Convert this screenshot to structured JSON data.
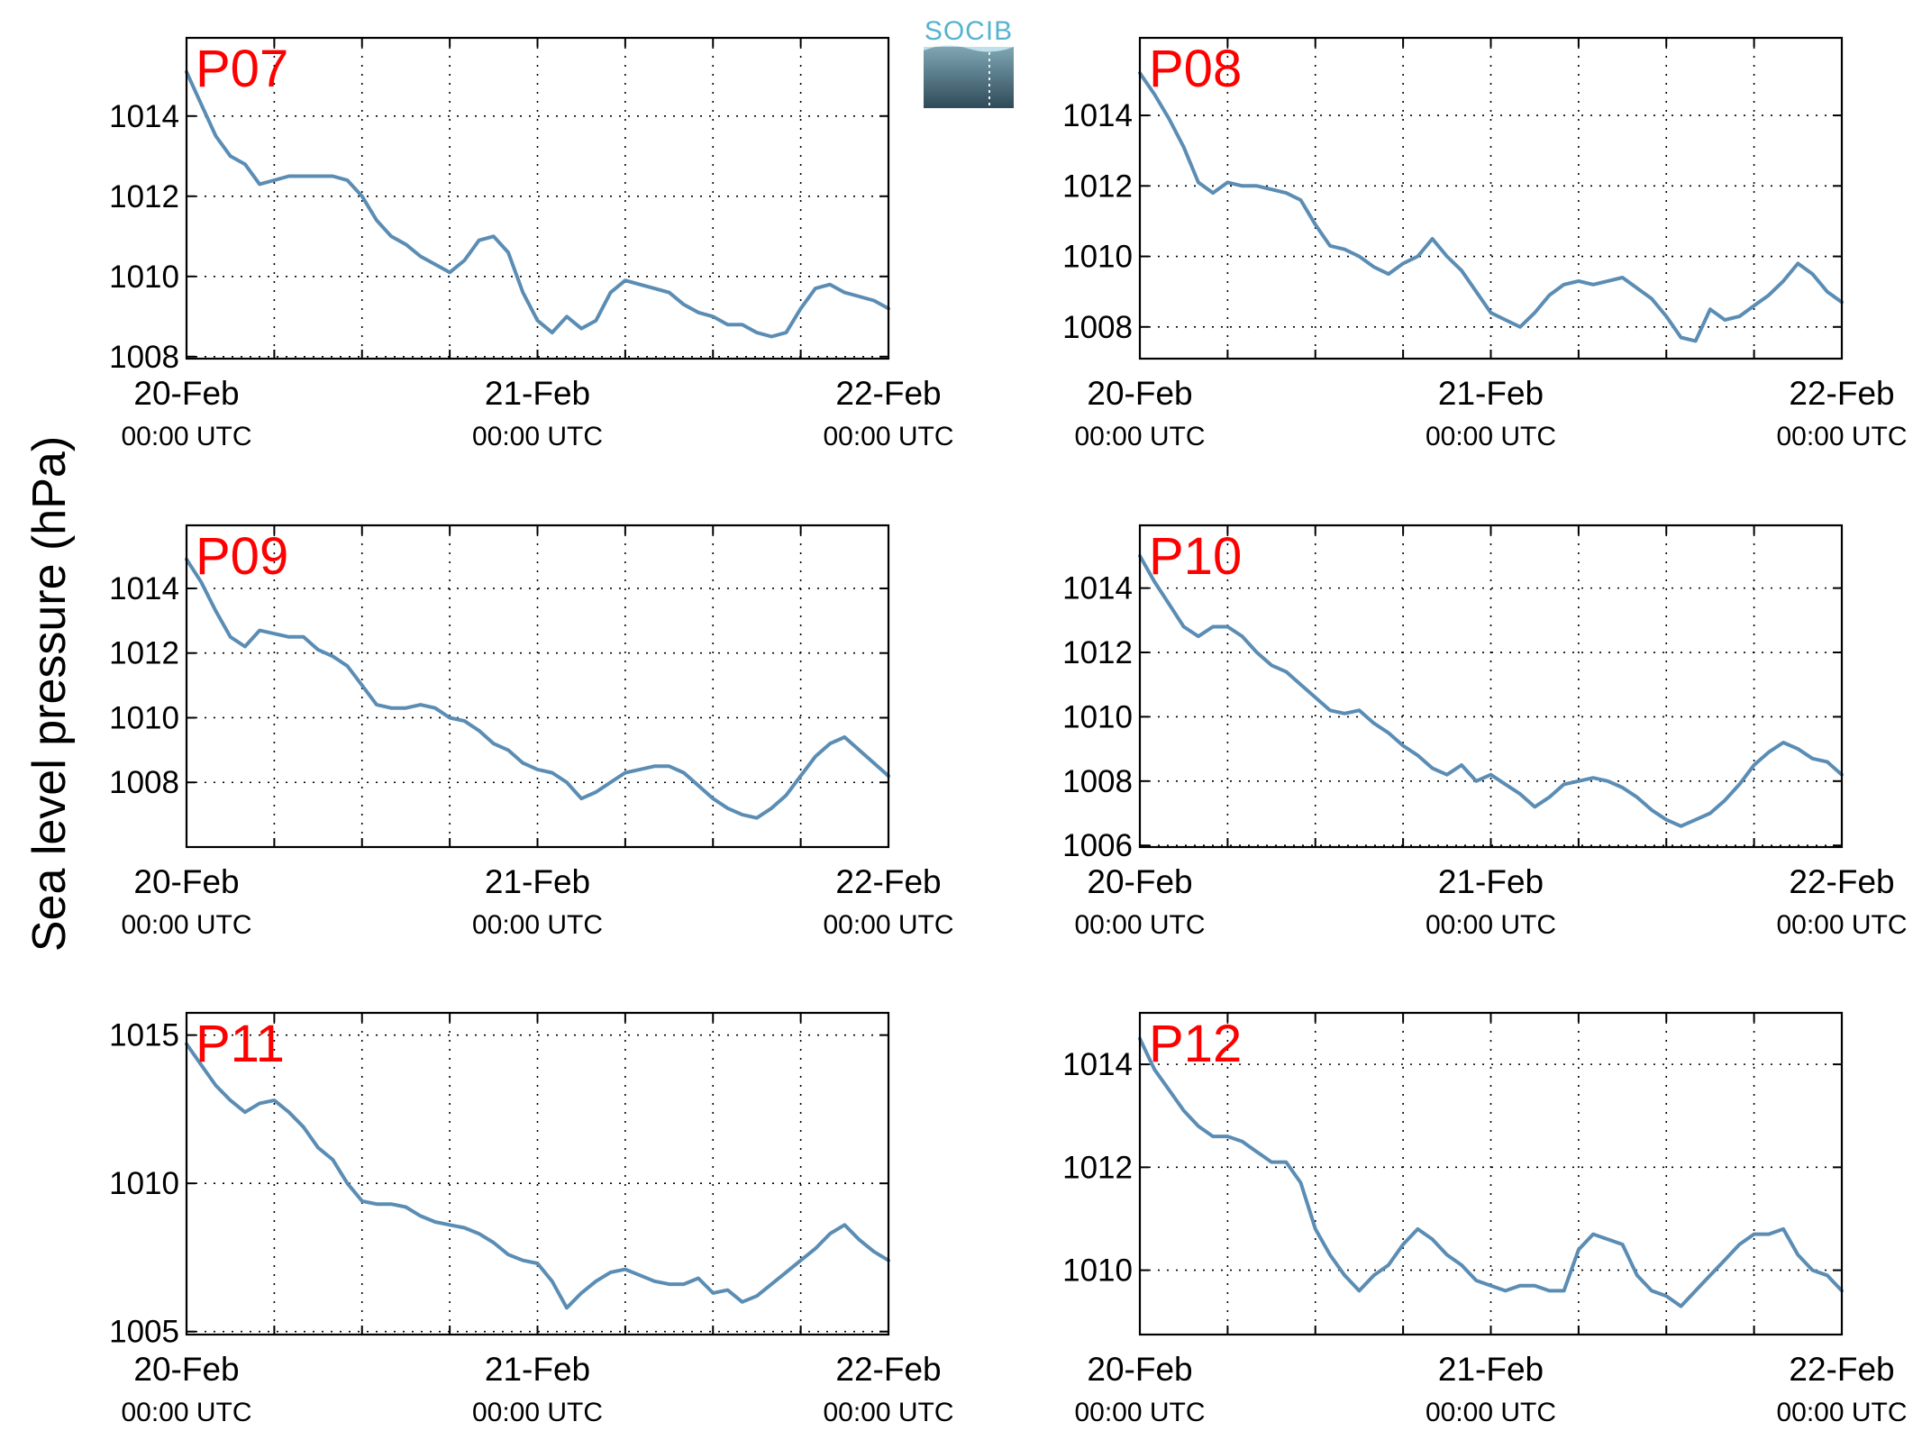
{
  "figure": {
    "ylabel": "Sea level pressure (hPa)",
    "logo_text": "SOCIB",
    "line_color": "#5b8db4",
    "panel_label_color": "#ff0000"
  },
  "chart_data": [
    {
      "type": "line",
      "panel_label": "P07",
      "x_ticks": [
        {
          "date": "20-Feb",
          "time": "00:00 UTC"
        },
        {
          "date": "21-Feb",
          "time": "00:00 UTC"
        },
        {
          "date": "22-Feb",
          "time": "00:00 UTC"
        }
      ],
      "x_range": [
        "2020-02-20 00:00",
        "2020-02-22 00:00"
      ],
      "x_grid_hours": 6,
      "y_ticks": [
        1008,
        1010,
        1012,
        1014
      ],
      "ylim": [
        1007.95,
        1015.95
      ],
      "grid": true,
      "series": [
        {
          "x_hours": [
            0,
            1,
            2,
            3,
            4,
            5,
            6,
            7,
            8,
            9,
            10,
            11,
            12,
            13,
            14,
            15,
            16,
            17,
            18,
            19,
            20,
            21,
            22,
            23,
            24,
            25,
            26,
            27,
            28,
            29,
            30,
            31,
            32,
            33,
            34,
            35,
            36,
            37,
            38,
            39,
            40,
            41,
            42,
            43,
            44,
            45,
            46,
            47,
            48
          ],
          "values": [
            1015.1,
            1014.3,
            1013.5,
            1013.0,
            1012.8,
            1012.3,
            1012.4,
            1012.5,
            1012.5,
            1012.5,
            1012.5,
            1012.4,
            1012.0,
            1011.4,
            1011.0,
            1010.8,
            1010.5,
            1010.3,
            1010.1,
            1010.4,
            1010.9,
            1011.0,
            1010.6,
            1009.6,
            1008.9,
            1008.6,
            1009.0,
            1008.7,
            1008.9,
            1009.6,
            1009.9,
            1009.8,
            1009.7,
            1009.6,
            1009.3,
            1009.1,
            1009.0,
            1008.8,
            1008.8,
            1008.6,
            1008.5,
            1008.6,
            1009.2,
            1009.7,
            1009.8,
            1009.6,
            1009.5,
            1009.4,
            1009.2
          ]
        }
      ]
    },
    {
      "type": "line",
      "panel_label": "P08",
      "x_ticks": [
        {
          "date": "20-Feb",
          "time": "00:00 UTC"
        },
        {
          "date": "21-Feb",
          "time": "00:00 UTC"
        },
        {
          "date": "22-Feb",
          "time": "00:00 UTC"
        }
      ],
      "x_range": [
        "2020-02-20 00:00",
        "2020-02-22 00:00"
      ],
      "x_grid_hours": 6,
      "y_ticks": [
        1008,
        1010,
        1012,
        1014
      ],
      "ylim": [
        1007.1,
        1016.2
      ],
      "grid": true,
      "series": [
        {
          "x_hours": [
            0,
            1,
            2,
            3,
            4,
            5,
            6,
            7,
            8,
            9,
            10,
            11,
            12,
            13,
            14,
            15,
            16,
            17,
            18,
            19,
            20,
            21,
            22,
            23,
            24,
            25,
            26,
            27,
            28,
            29,
            30,
            31,
            32,
            33,
            34,
            35,
            36,
            37,
            38,
            39,
            40,
            41,
            42,
            43,
            44,
            45,
            46,
            47,
            48
          ],
          "values": [
            1015.2,
            1014.6,
            1013.9,
            1013.1,
            1012.1,
            1011.8,
            1012.1,
            1012.0,
            1012.0,
            1011.9,
            1011.8,
            1011.6,
            1010.9,
            1010.3,
            1010.2,
            1010.0,
            1009.7,
            1009.5,
            1009.8,
            1010.0,
            1010.5,
            1010.0,
            1009.6,
            1009.0,
            1008.4,
            1008.2,
            1008.0,
            1008.4,
            1008.9,
            1009.2,
            1009.3,
            1009.2,
            1009.3,
            1009.4,
            1009.1,
            1008.8,
            1008.3,
            1007.7,
            1007.6,
            1008.5,
            1008.2,
            1008.3,
            1008.6,
            1008.9,
            1009.3,
            1009.8,
            1009.5,
            1009.0,
            1008.7
          ]
        }
      ]
    },
    {
      "type": "line",
      "panel_label": "P09",
      "x_ticks": [
        {
          "date": "20-Feb",
          "time": "00:00 UTC"
        },
        {
          "date": "21-Feb",
          "time": "00:00 UTC"
        },
        {
          "date": "22-Feb",
          "time": "00:00 UTC"
        }
      ],
      "x_range": [
        "2020-02-20 00:00",
        "2020-02-22 00:00"
      ],
      "x_grid_hours": 6,
      "y_ticks": [
        1008,
        1010,
        1012,
        1014
      ],
      "ylim": [
        1006.0,
        1015.95
      ],
      "grid": true,
      "series": [
        {
          "x_hours": [
            0,
            1,
            2,
            3,
            4,
            5,
            6,
            7,
            8,
            9,
            10,
            11,
            12,
            13,
            14,
            15,
            16,
            17,
            18,
            19,
            20,
            21,
            22,
            23,
            24,
            25,
            26,
            27,
            28,
            29,
            30,
            31,
            32,
            33,
            34,
            35,
            36,
            37,
            38,
            39,
            40,
            41,
            42,
            43,
            44,
            45,
            46,
            47,
            48
          ],
          "values": [
            1014.9,
            1014.2,
            1013.3,
            1012.5,
            1012.2,
            1012.7,
            1012.6,
            1012.5,
            1012.5,
            1012.1,
            1011.9,
            1011.6,
            1011.0,
            1010.4,
            1010.3,
            1010.3,
            1010.4,
            1010.3,
            1010.0,
            1009.9,
            1009.6,
            1009.2,
            1009.0,
            1008.6,
            1008.4,
            1008.3,
            1008.0,
            1007.5,
            1007.7,
            1008.0,
            1008.3,
            1008.4,
            1008.5,
            1008.5,
            1008.3,
            1007.9,
            1007.5,
            1007.2,
            1007.0,
            1006.9,
            1007.2,
            1007.6,
            1008.2,
            1008.8,
            1009.2,
            1009.4,
            1009.0,
            1008.6,
            1008.2
          ]
        }
      ]
    },
    {
      "type": "line",
      "panel_label": "P10",
      "x_ticks": [
        {
          "date": "20-Feb",
          "time": "00:00 UTC"
        },
        {
          "date": "21-Feb",
          "time": "00:00 UTC"
        },
        {
          "date": "22-Feb",
          "time": "00:00 UTC"
        }
      ],
      "x_range": [
        "2020-02-20 00:00",
        "2020-02-22 00:00"
      ],
      "x_grid_hours": 6,
      "y_ticks": [
        1006,
        1008,
        1010,
        1012,
        1014
      ],
      "ylim": [
        1005.95,
        1015.95
      ],
      "grid": true,
      "series": [
        {
          "x_hours": [
            0,
            1,
            2,
            3,
            4,
            5,
            6,
            7,
            8,
            9,
            10,
            11,
            12,
            13,
            14,
            15,
            16,
            17,
            18,
            19,
            20,
            21,
            22,
            23,
            24,
            25,
            26,
            27,
            28,
            29,
            30,
            31,
            32,
            33,
            34,
            35,
            36,
            37,
            38,
            39,
            40,
            41,
            42,
            43,
            44,
            45,
            46,
            47,
            48
          ],
          "values": [
            1015.0,
            1014.2,
            1013.5,
            1012.8,
            1012.5,
            1012.8,
            1012.8,
            1012.5,
            1012.0,
            1011.6,
            1011.4,
            1011.0,
            1010.6,
            1010.2,
            1010.1,
            1010.2,
            1009.8,
            1009.5,
            1009.1,
            1008.8,
            1008.4,
            1008.2,
            1008.5,
            1008.0,
            1008.2,
            1007.9,
            1007.6,
            1007.2,
            1007.5,
            1007.9,
            1008.0,
            1008.1,
            1008.0,
            1007.8,
            1007.5,
            1007.1,
            1006.8,
            1006.6,
            1006.8,
            1007.0,
            1007.4,
            1007.9,
            1008.5,
            1008.9,
            1009.2,
            1009.0,
            1008.7,
            1008.6,
            1008.2
          ]
        }
      ]
    },
    {
      "type": "line",
      "panel_label": "P11",
      "x_ticks": [
        {
          "date": "20-Feb",
          "time": "00:00 UTC"
        },
        {
          "date": "21-Feb",
          "time": "00:00 UTC"
        },
        {
          "date": "22-Feb",
          "time": "00:00 UTC"
        }
      ],
      "x_range": [
        "2020-02-20 00:00",
        "2020-02-22 00:00"
      ],
      "x_grid_hours": 6,
      "y_ticks": [
        1005,
        1010,
        1015
      ],
      "ylim": [
        1004.9,
        1015.75
      ],
      "grid": true,
      "series": [
        {
          "x_hours": [
            0,
            1,
            2,
            3,
            4,
            5,
            6,
            7,
            8,
            9,
            10,
            11,
            12,
            13,
            14,
            15,
            16,
            17,
            18,
            19,
            20,
            21,
            22,
            23,
            24,
            25,
            26,
            27,
            28,
            29,
            30,
            31,
            32,
            33,
            34,
            35,
            36,
            37,
            38,
            39,
            40,
            41,
            42,
            43,
            44,
            45,
            46,
            47,
            48
          ],
          "values": [
            1014.7,
            1014.0,
            1013.3,
            1012.8,
            1012.4,
            1012.7,
            1012.8,
            1012.4,
            1011.9,
            1011.2,
            1010.8,
            1010.0,
            1009.4,
            1009.3,
            1009.3,
            1009.2,
            1008.9,
            1008.7,
            1008.6,
            1008.5,
            1008.3,
            1008.0,
            1007.6,
            1007.4,
            1007.3,
            1006.7,
            1005.8,
            1006.3,
            1006.7,
            1007.0,
            1007.1,
            1006.9,
            1006.7,
            1006.6,
            1006.6,
            1006.8,
            1006.3,
            1006.4,
            1006.0,
            1006.2,
            1006.6,
            1007.0,
            1007.4,
            1007.8,
            1008.3,
            1008.6,
            1008.1,
            1007.7,
            1007.4
          ]
        }
      ]
    },
    {
      "type": "line",
      "panel_label": "P12",
      "x_ticks": [
        {
          "date": "20-Feb",
          "time": "00:00 UTC"
        },
        {
          "date": "21-Feb",
          "time": "00:00 UTC"
        },
        {
          "date": "22-Feb",
          "time": "00:00 UTC"
        }
      ],
      "x_range": [
        "2020-02-20 00:00",
        "2020-02-22 00:00"
      ],
      "x_grid_hours": 6,
      "y_ticks": [
        1010,
        1012,
        1014
      ],
      "ylim": [
        1008.75,
        1015.0
      ],
      "grid": true,
      "series": [
        {
          "x_hours": [
            0,
            1,
            2,
            3,
            4,
            5,
            6,
            7,
            8,
            9,
            10,
            11,
            12,
            13,
            14,
            15,
            16,
            17,
            18,
            19,
            20,
            21,
            22,
            23,
            24,
            25,
            26,
            27,
            28,
            29,
            30,
            31,
            32,
            33,
            34,
            35,
            36,
            37,
            38,
            39,
            40,
            41,
            42,
            43,
            44,
            45,
            46,
            47,
            48
          ],
          "values": [
            1014.5,
            1013.9,
            1013.5,
            1013.1,
            1012.8,
            1012.6,
            1012.6,
            1012.5,
            1012.3,
            1012.1,
            1012.1,
            1011.7,
            1010.8,
            1010.3,
            1009.9,
            1009.6,
            1009.9,
            1010.1,
            1010.5,
            1010.8,
            1010.6,
            1010.3,
            1010.1,
            1009.8,
            1009.7,
            1009.6,
            1009.7,
            1009.7,
            1009.6,
            1009.6,
            1010.4,
            1010.7,
            1010.6,
            1010.5,
            1009.9,
            1009.6,
            1009.5,
            1009.3,
            1009.6,
            1009.9,
            1010.2,
            1010.5,
            1010.7,
            1010.7,
            1010.8,
            1010.3,
            1010.0,
            1009.9,
            1009.6
          ]
        }
      ]
    }
  ]
}
